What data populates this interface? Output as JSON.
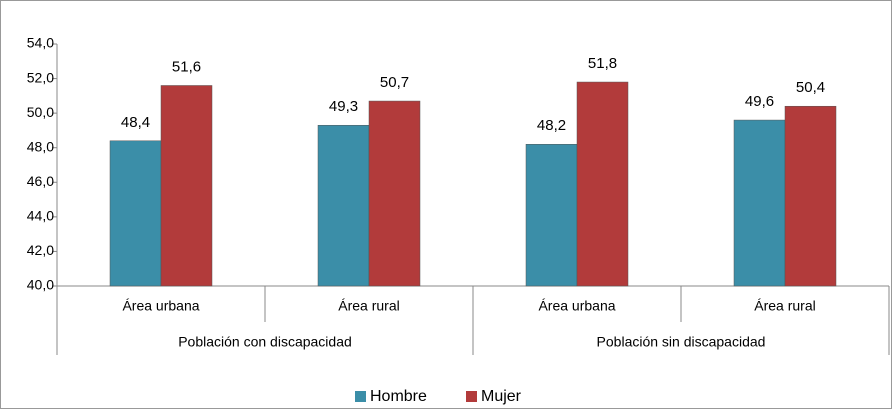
{
  "chart_data": {
    "type": "bar",
    "categories": [
      "Área urbana",
      "Área rural",
      "Área urbana",
      "Área rural"
    ],
    "groups": [
      "Población con discapacidad",
      "Población sin discapacidad"
    ],
    "series": [
      {
        "name": "Hombre",
        "color": "#3b8ea8",
        "values": [
          48.4,
          49.3,
          48.2,
          49.6
        ],
        "value_labels": [
          "48,4",
          "49,3",
          "48,2",
          "49,6"
        ]
      },
      {
        "name": "Mujer",
        "color": "#b23b3b",
        "values": [
          51.6,
          50.7,
          51.8,
          50.4
        ],
        "value_labels": [
          "51,6",
          "50,7",
          "51,8",
          "50,4"
        ]
      }
    ],
    "ylim": [
      40,
      54
    ],
    "yticks": [
      {
        "value": 40,
        "label": "40,0"
      },
      {
        "value": 42,
        "label": "42,0"
      },
      {
        "value": 44,
        "label": "44,0"
      },
      {
        "value": 46,
        "label": "46,0"
      },
      {
        "value": 48,
        "label": "48,0"
      },
      {
        "value": 50,
        "label": "50,0"
      },
      {
        "value": 52,
        "label": "52,0"
      },
      {
        "value": 54,
        "label": "54,0"
      }
    ],
    "legend": "bottom"
  }
}
